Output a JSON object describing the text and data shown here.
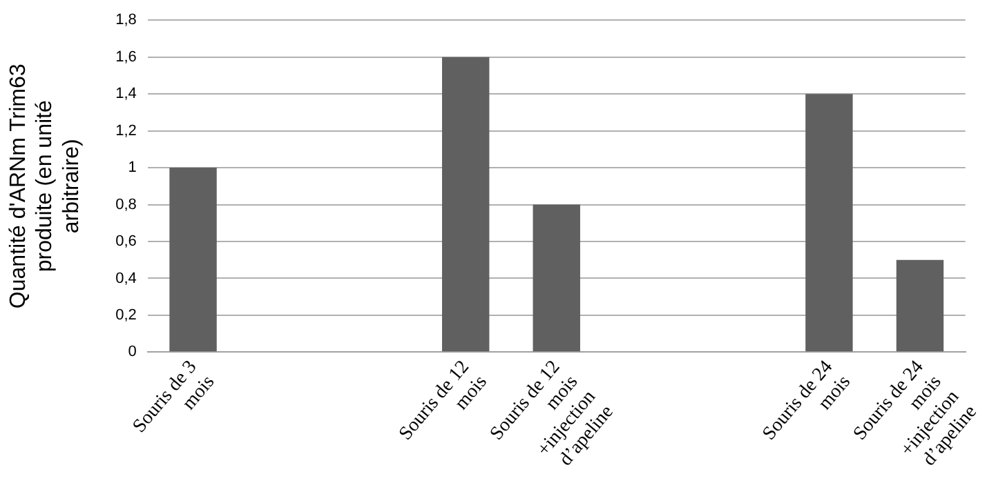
{
  "chart_data": {
    "type": "bar",
    "ylabel": "Quantité d'ARNm Trim63 produite (en unité arbitraire)",
    "categories": [
      "Souris de 3 mois",
      null,
      null,
      "Souris de 12 mois",
      "Souris de 12 mois +injection d’apeline",
      null,
      null,
      "Souris de 24 mois",
      "Souris de 24 mois +injection d’apeline"
    ],
    "values": [
      1,
      null,
      null,
      1.6,
      0.8,
      null,
      null,
      1.4,
      0.5
    ],
    "color": "#606060",
    "ylim": [
      0,
      1.8
    ],
    "yticks": [
      0,
      {
        "value": 0.2,
        "label": "0,2"
      },
      {
        "value": 0.4,
        "label": "0,4"
      },
      {
        "value": 0.6,
        "label": "0,6"
      },
      {
        "value": 0.8,
        "label": "0,8"
      },
      1,
      {
        "value": 1.2,
        "label": "1,2"
      },
      {
        "value": 1.4,
        "label": "1,4"
      },
      {
        "value": 1.6,
        "label": "1,6"
      },
      {
        "value": 1.8,
        "label": "1,8"
      }
    ],
    "grid": "y",
    "legend": false
  }
}
